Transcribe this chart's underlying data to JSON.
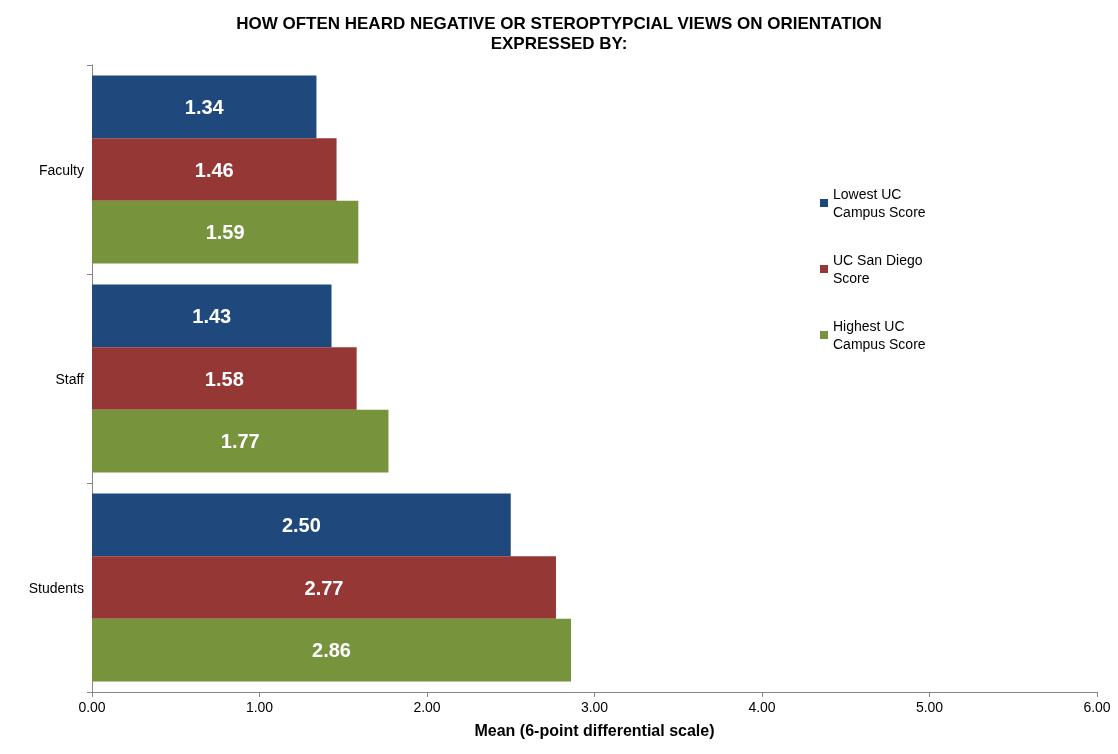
{
  "chart_data": {
    "type": "bar",
    "orientation": "horizontal",
    "title": "HOW OFTEN HEARD NEGATIVE OR STEROPTYPCIAL VIEWS ON ORIENTATION\nEXPRESSED BY:",
    "xlabel": "Mean (6-point differential scale)",
    "categories": [
      "Faculty",
      "Staff",
      "Students"
    ],
    "series": [
      {
        "name": "Lowest UC Campus Score",
        "color": "#1f497d",
        "values": [
          1.34,
          1.43,
          2.5
        ],
        "value_labels": [
          "1.34",
          "1.43",
          "2.50"
        ]
      },
      {
        "name": "UC San Diego Score",
        "color": "#953735",
        "values": [
          1.46,
          1.58,
          2.77
        ],
        "value_labels": [
          "1.46",
          "1.58",
          "2.77"
        ]
      },
      {
        "name": "Highest UC Campus Score",
        "color": "#77933c",
        "values": [
          1.59,
          1.77,
          2.86
        ],
        "value_labels": [
          "1.59",
          "1.77",
          "2.86"
        ]
      }
    ],
    "xlim": [
      0,
      6
    ],
    "xticks": [
      {
        "value": 0,
        "label": "0.00"
      },
      {
        "value": 1,
        "label": "1.00"
      },
      {
        "value": 2,
        "label": "2.00"
      },
      {
        "value": 3,
        "label": "3.00"
      },
      {
        "value": 4,
        "label": "4.00"
      },
      {
        "value": 5,
        "label": "5.00"
      },
      {
        "value": 6,
        "label": "6.00"
      }
    ],
    "grid": false,
    "legend": "right"
  }
}
